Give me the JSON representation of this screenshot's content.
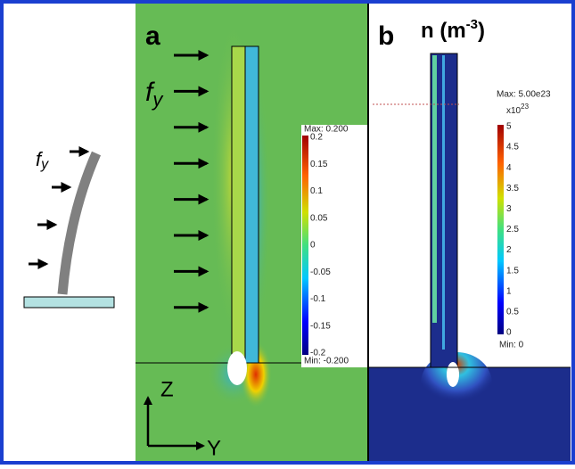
{
  "figure": {
    "left": {
      "force": {
        "f": "f",
        "sub": "y"
      }
    },
    "panel_a": {
      "letter": "a",
      "force": {
        "f": "f",
        "sub": "y"
      },
      "colorbar": {
        "max": "Max: 0.200",
        "min": "Min: -0.200",
        "ticks": [
          "0.2",
          "0.15",
          "0.1",
          "0.05",
          "0",
          "-0.05",
          "-0.1",
          "-0.15",
          "-0.2"
        ]
      },
      "axes": {
        "z": "Z",
        "y": "Y"
      }
    },
    "panel_b": {
      "letter": "b",
      "title": {
        "main": "n (m",
        "sup": "-3",
        "end": ")"
      },
      "colorbar": {
        "max": "Max: 5.00e23",
        "scale": {
          "main": "x10",
          "sup": "23"
        },
        "min": "Min: 0",
        "ticks": [
          "5",
          "4.5",
          "4",
          "3.5",
          "3",
          "2.5",
          "2",
          "1.5",
          "1",
          "0.5",
          "0"
        ]
      }
    }
  }
}
